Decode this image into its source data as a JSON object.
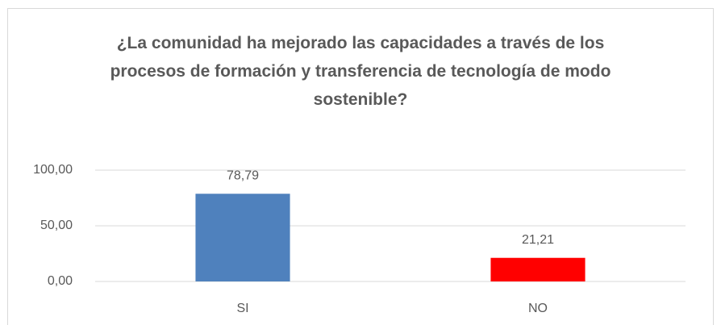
{
  "chart_data": {
    "type": "bar",
    "title": "¿La comunidad ha mejorado las capacidades a través de los procesos de formación y transferencia de tecnología de modo sostenible?",
    "categories": [
      "SI",
      "NO"
    ],
    "values": [
      78.79,
      21.21
    ],
    "value_labels": [
      "78,79",
      "21,21"
    ],
    "colors": [
      "#4f81bd",
      "#ff0000"
    ],
    "ylim": [
      0,
      100
    ],
    "yticks": [
      {
        "value": 0,
        "label": "0,00"
      },
      {
        "value": 50,
        "label": "50,00"
      },
      {
        "value": 100,
        "label": "100,00"
      }
    ],
    "grid": true
  }
}
